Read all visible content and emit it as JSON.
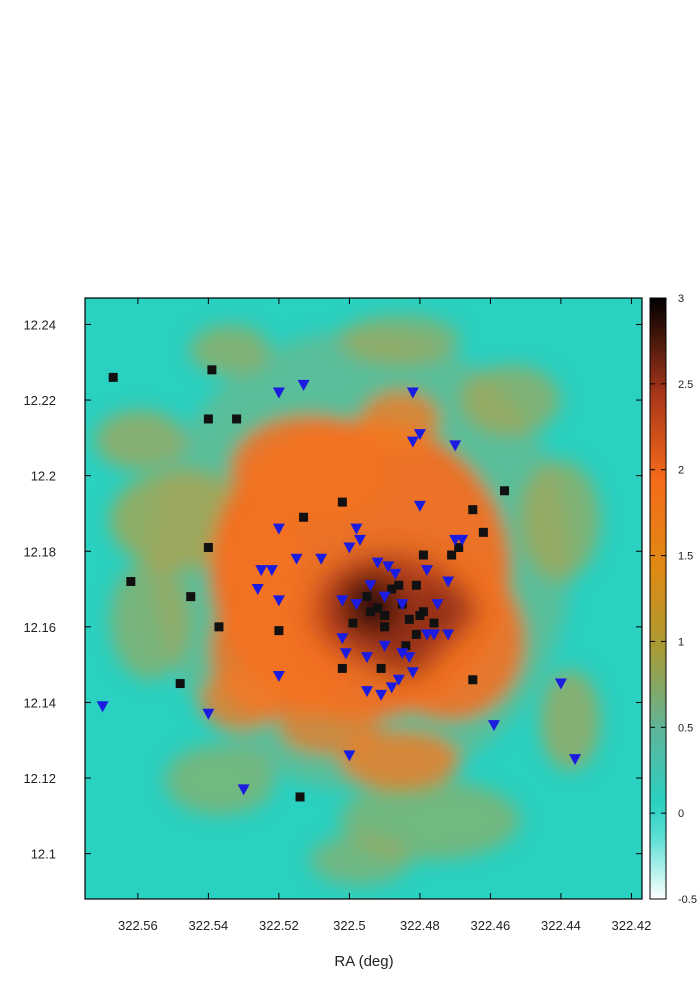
{
  "chart_data": {
    "type": "scatter",
    "title": "",
    "xlabel": "RA (deg)",
    "ylabel": "",
    "x_reversed": true,
    "xlim": [
      322.575,
      322.417
    ],
    "ylim": [
      12.088,
      12.247
    ],
    "x_ticks": [
      322.56,
      322.54,
      322.52,
      322.5,
      322.48,
      322.46,
      322.44,
      322.42
    ],
    "x_tick_labels": [
      "322.56",
      "322.54",
      "322.52",
      "322.5",
      "322.48",
      "322.46",
      "322.44",
      "322.42"
    ],
    "y_ticks": [
      12.1,
      12.12,
      12.14,
      12.16,
      12.18,
      12.2,
      12.22,
      12.24
    ],
    "y_tick_labels": [
      "12.1",
      "12.12",
      "12.14",
      "12.16",
      "12.18",
      "12.2",
      "12.22",
      "12.24"
    ],
    "grid": false,
    "legend": "none",
    "background_map": {
      "type": "heatmap",
      "description_level": "density",
      "colorbar_range": [
        -0.5,
        3
      ],
      "colorbar_ticks": [
        -0.5,
        0,
        0.5,
        1,
        1.5,
        2,
        2.5,
        3
      ],
      "colorbar_tick_labels": [
        "-0.5",
        "0",
        "0.5",
        "1",
        "1.5",
        "2",
        "2.5",
        "3"
      ],
      "colors": [
        "#ffffff",
        "#2ad0c0",
        "#3dcfb5",
        "#8f9a3a",
        "#d98a14",
        "#f56a1a",
        "#a8361a",
        "#000000"
      ]
    },
    "series": [
      {
        "marker": "square",
        "color": "#111111",
        "points": [
          [
            322.567,
            12.226
          ],
          [
            322.539,
            12.228
          ],
          [
            322.54,
            12.215
          ],
          [
            322.532,
            12.215
          ],
          [
            322.562,
            12.172
          ],
          [
            322.54,
            12.181
          ],
          [
            322.545,
            12.168
          ],
          [
            322.537,
            12.16
          ],
          [
            322.548,
            12.145
          ],
          [
            322.52,
            12.159
          ],
          [
            322.513,
            12.189
          ],
          [
            322.502,
            12.193
          ],
          [
            322.495,
            12.168
          ],
          [
            322.492,
            12.165
          ],
          [
            322.49,
            12.163
          ],
          [
            322.488,
            12.17
          ],
          [
            322.485,
            12.166
          ],
          [
            322.483,
            12.162
          ],
          [
            322.481,
            12.158
          ],
          [
            322.479,
            12.164
          ],
          [
            322.476,
            12.161
          ],
          [
            322.499,
            12.161
          ],
          [
            322.494,
            12.164
          ],
          [
            322.486,
            12.171
          ],
          [
            322.484,
            12.155
          ],
          [
            322.481,
            12.171
          ],
          [
            322.491,
            12.149
          ],
          [
            322.49,
            12.16
          ],
          [
            322.479,
            12.179
          ],
          [
            322.471,
            12.179
          ],
          [
            322.469,
            12.181
          ],
          [
            322.465,
            12.191
          ],
          [
            322.462,
            12.185
          ],
          [
            322.456,
            12.196
          ],
          [
            322.48,
            12.163
          ],
          [
            322.502,
            12.149
          ],
          [
            322.465,
            12.146
          ],
          [
            322.514,
            12.115
          ]
        ]
      },
      {
        "marker": "triangle-down",
        "color": "#1c1ce0",
        "points": [
          [
            322.52,
            12.222
          ],
          [
            322.513,
            12.224
          ],
          [
            322.482,
            12.222
          ],
          [
            322.48,
            12.211
          ],
          [
            322.482,
            12.209
          ],
          [
            322.47,
            12.208
          ],
          [
            322.48,
            12.192
          ],
          [
            322.498,
            12.186
          ],
          [
            322.497,
            12.183
          ],
          [
            322.5,
            12.181
          ],
          [
            322.52,
            12.186
          ],
          [
            322.525,
            12.175
          ],
          [
            322.522,
            12.175
          ],
          [
            322.526,
            12.17
          ],
          [
            322.52,
            12.167
          ],
          [
            322.515,
            12.178
          ],
          [
            322.508,
            12.178
          ],
          [
            322.502,
            12.167
          ],
          [
            322.498,
            12.166
          ],
          [
            322.494,
            12.171
          ],
          [
            322.492,
            12.177
          ],
          [
            322.489,
            12.176
          ],
          [
            322.487,
            12.174
          ],
          [
            322.49,
            12.168
          ],
          [
            322.485,
            12.166
          ],
          [
            322.475,
            12.166
          ],
          [
            322.478,
            12.175
          ],
          [
            322.47,
            12.183
          ],
          [
            322.468,
            12.183
          ],
          [
            322.472,
            12.172
          ],
          [
            322.478,
            12.158
          ],
          [
            322.472,
            12.158
          ],
          [
            322.502,
            12.157
          ],
          [
            322.501,
            12.153
          ],
          [
            322.495,
            12.152
          ],
          [
            322.49,
            12.155
          ],
          [
            322.485,
            12.153
          ],
          [
            322.483,
            12.152
          ],
          [
            322.486,
            12.146
          ],
          [
            322.495,
            12.143
          ],
          [
            322.491,
            12.142
          ],
          [
            322.488,
            12.144
          ],
          [
            322.482,
            12.148
          ],
          [
            322.476,
            12.158
          ],
          [
            322.52,
            12.147
          ],
          [
            322.54,
            12.137
          ],
          [
            322.53,
            12.117
          ],
          [
            322.5,
            12.126
          ],
          [
            322.459,
            12.134
          ],
          [
            322.44,
            12.145
          ],
          [
            322.436,
            12.125
          ],
          [
            322.57,
            12.139
          ],
          [
            322.502,
            12.167
          ]
        ]
      }
    ]
  }
}
